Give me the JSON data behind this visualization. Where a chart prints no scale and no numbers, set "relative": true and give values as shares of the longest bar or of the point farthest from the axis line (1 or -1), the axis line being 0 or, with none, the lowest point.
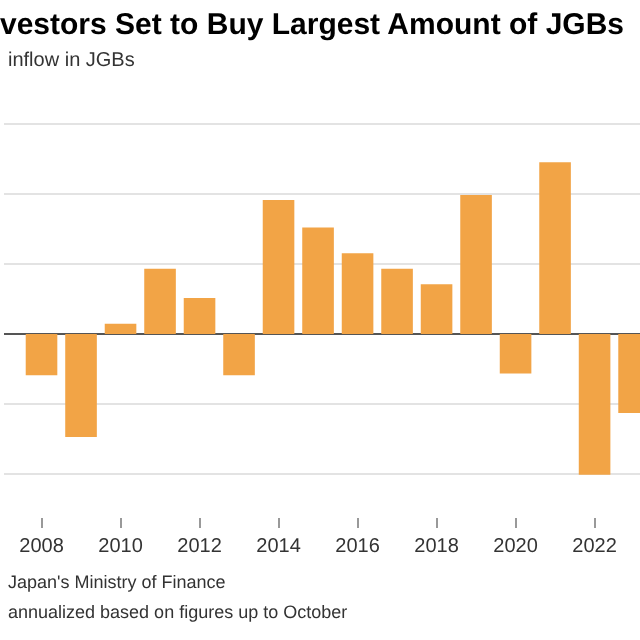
{
  "chart_data": {
    "type": "bar",
    "title": "vestors Set to Buy Largest Amount of JGBs",
    "subtitle": "inflow in JGBs",
    "categories": [
      "2008",
      null,
      "2010",
      null,
      "2012",
      null,
      "2014",
      null,
      "2016",
      null,
      "2018",
      null,
      "2020",
      null,
      "2022",
      null
    ],
    "values": [
      -0.24,
      -0.6,
      0.06,
      0.38,
      0.21,
      -0.24,
      0.78,
      0.62,
      0.47,
      0.38,
      0.29,
      0.81,
      -0.23,
      1,
      -0.82,
      -0.46
    ],
    "color": "#f2a446",
    "relative": true,
    "grid": "y",
    "annotations": [
      "Japan's Ministry of Finance",
      "annualized based on figures up to October"
    ]
  }
}
